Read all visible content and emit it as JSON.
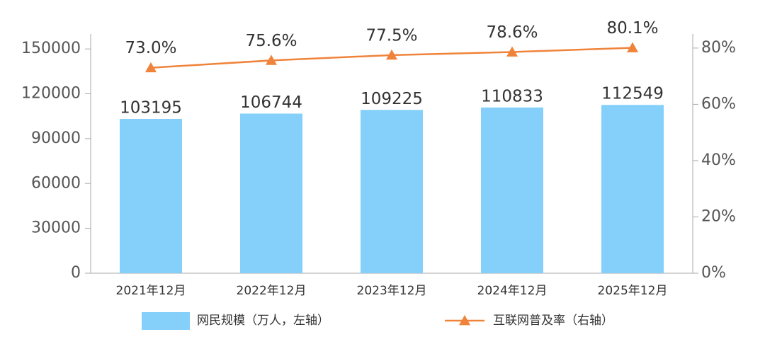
{
  "chart_data": {
    "type": "combo",
    "categories": [
      "2021年12月",
      "2022年12月",
      "2023年12月",
      "2024年12月",
      "2025年12月"
    ],
    "series": [
      {
        "name": "网民规模（万人，左轴）",
        "type": "bar",
        "color": "#84d0fb",
        "values": [
          103195,
          106744,
          109225,
          110833,
          112549
        ]
      },
      {
        "name": "互联网普及率（右轴）",
        "type": "line",
        "axis": "y2",
        "color": "#f0833a",
        "values": [
          73.0,
          75.6,
          77.5,
          78.6,
          80.1
        ],
        "value_labels": [
          "73.0%",
          "75.6%",
          "77.5%",
          "78.6%",
          "80.1%"
        ]
      }
    ],
    "ylim": [
      0,
      160000
    ],
    "yticks": [
      0,
      30000,
      60000,
      90000,
      120000,
      150000
    ],
    "y2lim": [
      0,
      85
    ],
    "y2ticks": [
      {
        "value": 0,
        "label": "0%"
      },
      {
        "value": 20,
        "label": "20%"
      },
      {
        "value": 40,
        "label": "40%"
      },
      {
        "value": 60,
        "label": "60%"
      },
      {
        "value": 80,
        "label": "80%"
      }
    ],
    "legend": "bottom"
  }
}
